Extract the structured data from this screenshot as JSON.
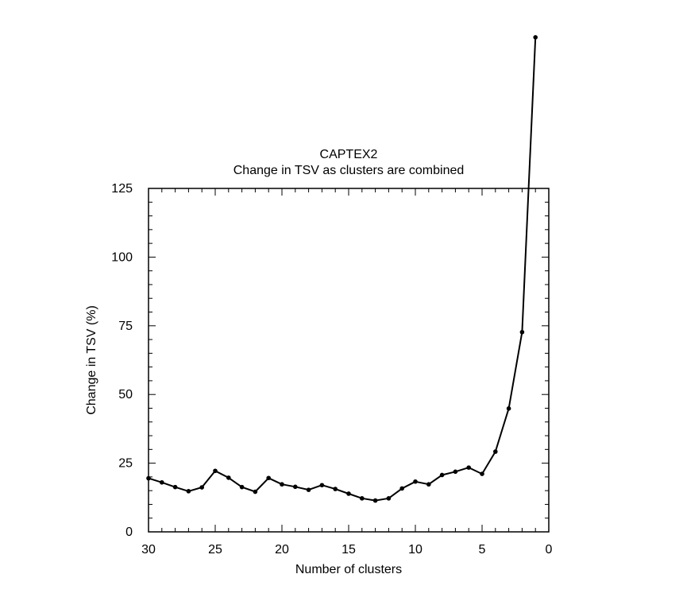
{
  "chart_data": {
    "type": "line",
    "title": "CAPTEX2",
    "subtitle": "Change in TSV as clusters are combined",
    "xlabel": "Number of clusters",
    "ylabel": "Change in TSV (%)",
    "xlim": [
      30,
      0
    ],
    "ylim": [
      0,
      125
    ],
    "x_ticks": [
      30,
      25,
      20,
      15,
      10,
      5,
      0
    ],
    "y_ticks": [
      0,
      25,
      50,
      75,
      100,
      125
    ],
    "grid": false,
    "series": [
      {
        "x": [
          30,
          29,
          28,
          27,
          26,
          25,
          24,
          23,
          22,
          21,
          20,
          19,
          18,
          17,
          16,
          15,
          14,
          13,
          12,
          11,
          10,
          9,
          8,
          7,
          6,
          5,
          4,
          3,
          2,
          1
        ],
        "y": [
          19.5,
          18,
          16.3,
          14.8,
          16.2,
          22.2,
          19.7,
          16.3,
          14.6,
          19.6,
          17.3,
          16.4,
          15.3,
          17,
          15.6,
          13.9,
          12.2,
          11.4,
          12.2,
          15.8,
          18.3,
          17.3,
          20.7,
          21.9,
          23.4,
          21.1,
          29.2,
          44.9,
          72.7,
          180
        ]
      }
    ]
  }
}
